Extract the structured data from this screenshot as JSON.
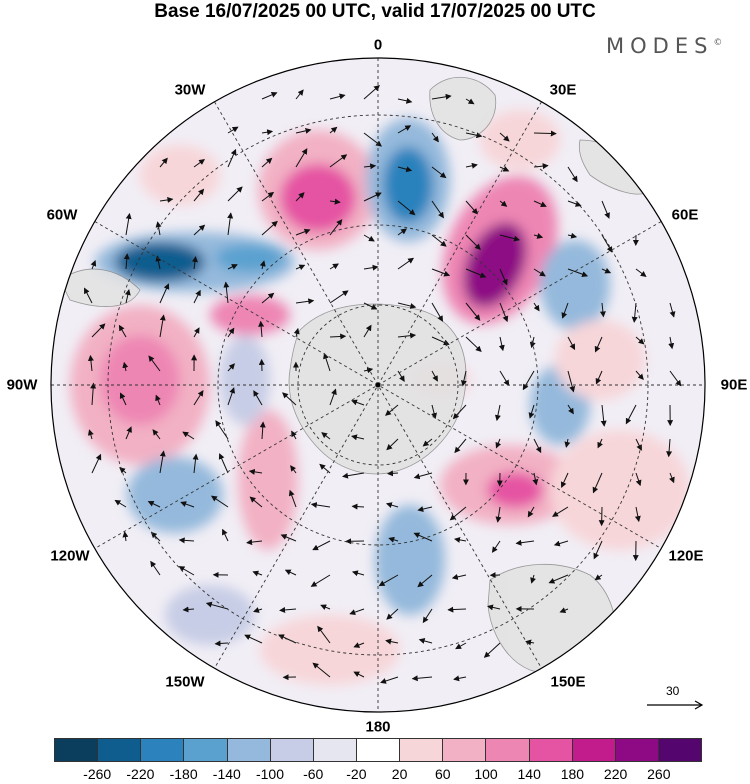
{
  "header": {
    "title": "Base 16/07/2025 00 UTC, valid 17/07/2025 00 UTC",
    "brand": "MODES",
    "brand_mark": "©"
  },
  "map": {
    "projection": "south-polar-stereographic",
    "longitude_labels": [
      "0",
      "30E",
      "60E",
      "90E",
      "120E",
      "150E",
      "180",
      "150W",
      "120W",
      "90W",
      "60W",
      "30W"
    ],
    "graticule": "dashed",
    "land_color": "#e8e8e8",
    "vectors": "wind arrows"
  },
  "reference_vector": {
    "label": "30"
  },
  "colorbar": {
    "colors": [
      "#0b3d5c",
      "#0f5d8f",
      "#2c82bd",
      "#5aa1d0",
      "#94b9dc",
      "#c7cde6",
      "#e6e6f1",
      "#ffffff",
      "#f7d6d9",
      "#f2b1c4",
      "#ee86b4",
      "#e553a3",
      "#c21c8c",
      "#8d0a84",
      "#54066e"
    ],
    "tick_labels": [
      "-260",
      "-220",
      "-180",
      "-140",
      "-100",
      "-60",
      "-20",
      "20",
      "60",
      "100",
      "140",
      "180",
      "220",
      "260"
    ]
  }
}
